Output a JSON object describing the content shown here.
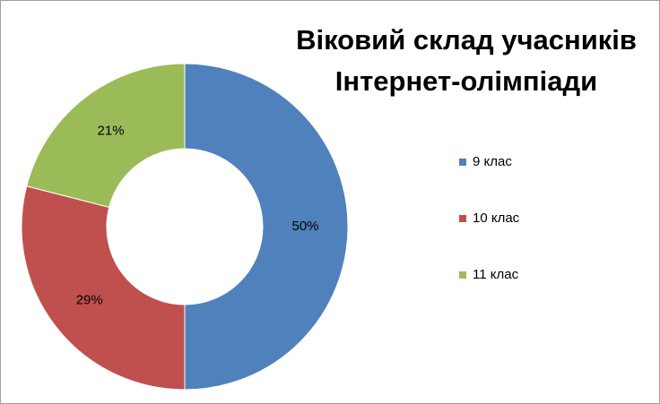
{
  "chart_data": {
    "type": "donut",
    "title": "Віковий склад учасників Інтернет-олімпіади",
    "categories": [
      "9 клас",
      "10 клас",
      "11 клас"
    ],
    "values": [
      50,
      29,
      21
    ],
    "value_labels": [
      "50%",
      "29%",
      "21%"
    ],
    "colors": [
      "#4f81bd",
      "#c0504d",
      "#9bbb59"
    ],
    "legend": "right"
  }
}
